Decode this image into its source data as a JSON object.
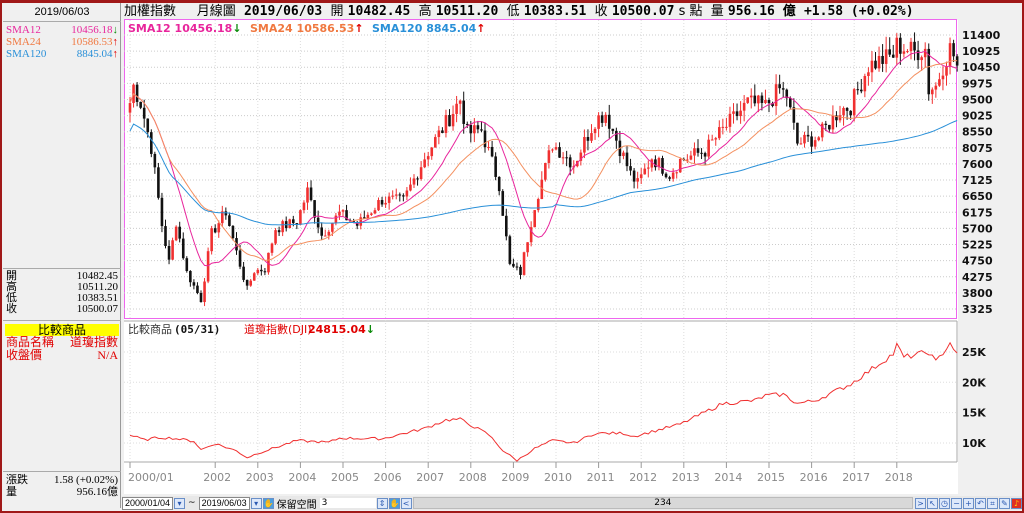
{
  "left": {
    "date": "2019/06/03",
    "sma": [
      {
        "label": "SMA12",
        "value": "10456.18",
        "arrow": "↓",
        "color": "#e8259c",
        "acolor": "#0a8a0a"
      },
      {
        "label": "SMA24",
        "value": "10586.53",
        "arrow": "↑",
        "color": "#f07840",
        "acolor": "#e00000"
      },
      {
        "label": "SMA120",
        "value": "8845.04",
        "arrow": "↑",
        "color": "#2a90d8",
        "acolor": "#e00000"
      }
    ],
    "ohlc": [
      {
        "label": "開",
        "value": "10482.45"
      },
      {
        "label": "高",
        "value": "10511.20"
      },
      {
        "label": "低",
        "value": "10383.51"
      },
      {
        "label": "收",
        "value": "10500.07"
      }
    ],
    "compare": {
      "title": "比較商品",
      "name_label": "商品名稱",
      "name_value": "道瓊指數",
      "close_label": "收盤價",
      "close_value": "N/A"
    },
    "change_label": "漲跌",
    "change_value": "1.58 (+0.02%)",
    "vol_label": "量",
    "vol_value": "956.16億"
  },
  "header": {
    "symbol": "加權指數",
    "period": "月線圖",
    "date": "2019/06/03",
    "open_label": "開",
    "open": "10482.45",
    "high_label": "高",
    "high": "10511.20",
    "low_label": "低",
    "low": "10383.51",
    "close_label": "收",
    "close": "10500.07",
    "unit": "s 點",
    "vol_label": "量",
    "vol": "956.16 億",
    "change": "+1.58 (+0.02%)"
  },
  "lower_legend": {
    "label": "比較商品",
    "date": "(05/31)",
    "name": "道瓊指數(DJI)",
    "value": "24815.04",
    "arrow": "↓"
  },
  "bottom": {
    "start": "2000/01/04",
    "sep": "~",
    "end": "2019/06/03",
    "reserve_label": "保留空間",
    "reserve_value": "3",
    "scroll_value": "234"
  },
  "chart_data": [
    {
      "type": "candlestick",
      "title": "加權指數 月線圖",
      "months": 234,
      "start": "2000/01",
      "yticks": [
        3325,
        3800,
        4275,
        4750,
        5225,
        5700,
        6175,
        6650,
        7125,
        7600,
        8075,
        8550,
        9025,
        9500,
        9975,
        10450,
        10925,
        11400
      ],
      "ylim": [
        3100,
        11700
      ],
      "xticks": [
        "2000/01",
        "2002",
        "2003",
        "2004",
        "2005",
        "2006",
        "2007",
        "2008",
        "2009",
        "2010",
        "2011",
        "2012",
        "2013",
        "2014",
        "2015",
        "2016",
        "2017",
        "2018"
      ],
      "close_anchors": [
        [
          0,
          9400
        ],
        [
          1,
          9900
        ],
        [
          3,
          9400
        ],
        [
          6,
          8100
        ],
        [
          9,
          5800
        ],
        [
          11,
          4700
        ],
        [
          13,
          5900
        ],
        [
          16,
          4400
        ],
        [
          20,
          3600
        ],
        [
          23,
          5550
        ],
        [
          27,
          6200
        ],
        [
          30,
          5000
        ],
        [
          33,
          3900
        ],
        [
          35,
          4450
        ],
        [
          38,
          4500
        ],
        [
          41,
          5700
        ],
        [
          47,
          5900
        ],
        [
          50,
          6800
        ],
        [
          54,
          5500
        ],
        [
          59,
          6140
        ],
        [
          64,
          5800
        ],
        [
          71,
          6550
        ],
        [
          77,
          6500
        ],
        [
          83,
          7800
        ],
        [
          89,
          8800
        ],
        [
          93,
          9500
        ],
        [
          95,
          8500
        ],
        [
          99,
          8600
        ],
        [
          104,
          7000
        ],
        [
          107,
          4600
        ],
        [
          110,
          4400
        ],
        [
          114,
          6400
        ],
        [
          119,
          8200
        ],
        [
          125,
          7600
        ],
        [
          131,
          8900
        ],
        [
          134,
          9100
        ],
        [
          141,
          7300
        ],
        [
          143,
          7000
        ],
        [
          147,
          7800
        ],
        [
          152,
          7300
        ],
        [
          155,
          7700
        ],
        [
          162,
          8000
        ],
        [
          167,
          8600
        ],
        [
          174,
          9400
        ],
        [
          179,
          9300
        ],
        [
          183,
          9800
        ],
        [
          185,
          9600
        ],
        [
          188,
          8200
        ],
        [
          191,
          8300
        ],
        [
          194,
          8400
        ],
        [
          200,
          9200
        ],
        [
          203,
          9300
        ],
        [
          208,
          10500
        ],
        [
          215,
          10800
        ],
        [
          216,
          11100
        ],
        [
          221,
          10900
        ],
        [
          224,
          11000
        ],
        [
          225,
          9800
        ],
        [
          227,
          9900
        ],
        [
          229,
          10500
        ],
        [
          231,
          11000
        ],
        [
          232,
          10800
        ],
        [
          233,
          10500
        ]
      ]
    },
    {
      "type": "line",
      "title": "道瓊指數(DJI)",
      "yticks": [
        "10K",
        "15K",
        "20K",
        "25K"
      ],
      "ylim": [
        5500,
        28000
      ],
      "anchors": [
        [
          0,
          11300
        ],
        [
          4,
          10500
        ],
        [
          8,
          10900
        ],
        [
          12,
          10800
        ],
        [
          18,
          10300
        ],
        [
          20,
          8900
        ],
        [
          24,
          9900
        ],
        [
          30,
          8700
        ],
        [
          33,
          7600
        ],
        [
          36,
          8300
        ],
        [
          47,
          10400
        ],
        [
          56,
          10100
        ],
        [
          59,
          10800
        ],
        [
          71,
          10700
        ],
        [
          83,
          12400
        ],
        [
          89,
          13800
        ],
        [
          93,
          13900
        ],
        [
          101,
          11400
        ],
        [
          105,
          8800
        ],
        [
          109,
          7100
        ],
        [
          114,
          9100
        ],
        [
          119,
          10400
        ],
        [
          125,
          10000
        ],
        [
          131,
          11600
        ],
        [
          139,
          11600
        ],
        [
          142,
          11100
        ],
        [
          155,
          13100
        ],
        [
          167,
          16500
        ],
        [
          176,
          17000
        ],
        [
          179,
          17800
        ],
        [
          184,
          18000
        ],
        [
          188,
          16500
        ],
        [
          193,
          17000
        ],
        [
          203,
          19700
        ],
        [
          215,
          24700
        ],
        [
          216,
          26100
        ],
        [
          218,
          24100
        ],
        [
          225,
          25000
        ],
        [
          227,
          23300
        ],
        [
          231,
          26500
        ],
        [
          233,
          24815
        ]
      ]
    }
  ]
}
